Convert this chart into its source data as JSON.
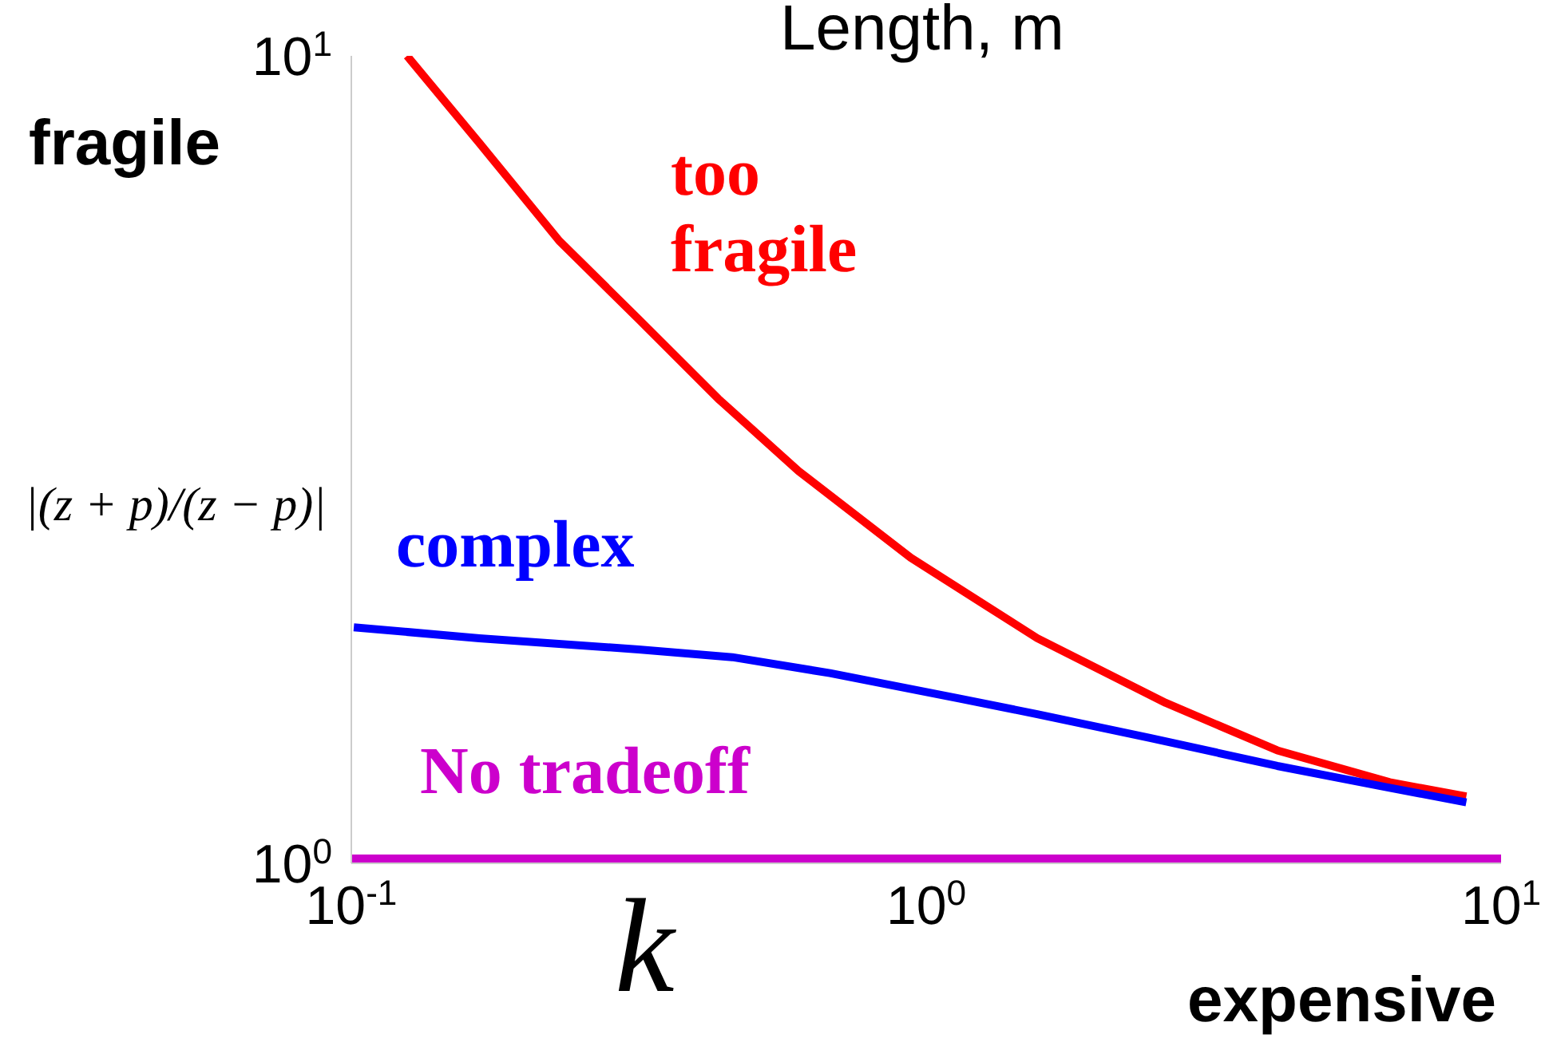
{
  "chart_data": {
    "type": "line",
    "title": "Length, m",
    "xlabel": "k",
    "ylabel": "|(z + p)/(z − p)|",
    "annotations": [
      "fragile",
      "expensive"
    ],
    "log": "xy",
    "xlim": [
      0.1,
      10
    ],
    "ylim": [
      1,
      10
    ],
    "xticks": [
      {
        "value": 0.1,
        "label": "10$^{-1}$"
      },
      {
        "value": 1,
        "label": "10$^{0}$"
      },
      {
        "value": 10,
        "label": "10$^{1}$"
      }
    ],
    "yticks": [
      {
        "value": 1,
        "label": "10$^{0}$"
      },
      {
        "value": 10,
        "label": "10$^{1}$"
      }
    ],
    "marker": "none",
    "line_style": "solid",
    "series": [
      {
        "name": "too fragile",
        "color": "#ff0000",
        "x": [
          0.125,
          0.167,
          0.23,
          0.316,
          0.435,
          0.6,
          0.94,
          1.56,
          2.61,
          4.08,
          6.4,
          8.7
        ],
        "values": [
          10,
          7.8,
          5.9,
          4.72,
          3.76,
          3.06,
          2.39,
          1.9,
          1.58,
          1.38,
          1.26,
          1.21
        ]
      },
      {
        "name": "complex",
        "color": "#0000ff",
        "x": [
          0.101,
          0.167,
          0.316,
          0.46,
          0.68,
          1.14,
          1.56,
          2.45,
          4.08,
          6.4,
          8.7
        ],
        "values": [
          1.96,
          1.9,
          1.84,
          1.8,
          1.72,
          1.6,
          1.53,
          1.43,
          1.32,
          1.24,
          1.19
        ]
      },
      {
        "name": "No tradeoff",
        "color": "#cc00cc",
        "x": [
          0.1,
          10
        ],
        "values": [
          1,
          1
        ]
      }
    ]
  }
}
